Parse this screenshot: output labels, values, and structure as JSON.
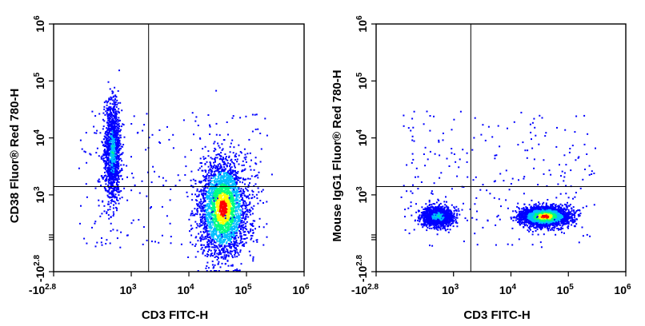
{
  "chart_data": [
    {
      "type": "scatter",
      "subtype": "flow-cytometry-density-dot-plot",
      "xlabel": "CD3 FITC-H",
      "ylabel": "CD38 Fluor® Red 780-H",
      "x_scale": "biexponential",
      "y_scale": "biexponential",
      "xlim": [
        -631,
        1000000
      ],
      "ylim": [
        -631,
        1000000
      ],
      "x_ticks": [
        {
          "base": "-10",
          "exp": "2.8"
        },
        {
          "base": "10",
          "exp": "3"
        },
        {
          "base": "10",
          "exp": "4"
        },
        {
          "base": "10",
          "exp": "5"
        },
        {
          "base": "10",
          "exp": "6"
        }
      ],
      "y_ticks": [
        {
          "base": "-10",
          "exp": "2.8"
        },
        {
          "base": "10",
          "exp": "3"
        },
        {
          "base": "10",
          "exp": "4"
        },
        {
          "base": "10",
          "exp": "5"
        },
        {
          "base": "10",
          "exp": "6"
        }
      ],
      "quadrant_gate": {
        "x": 2000,
        "y": 1400
      },
      "populations": [
        {
          "name_visible": false,
          "x_center": 400,
          "y_center": 6000,
          "x_spread": [
            200,
            700
          ],
          "y_spread": [
            300,
            25000
          ],
          "density": "medium"
        },
        {
          "name_visible": false,
          "x_center": 38000,
          "y_center": 600,
          "x_spread": [
            12000,
            90000
          ],
          "y_spread": [
            100,
            20000
          ],
          "density": "high"
        }
      ],
      "grid": false,
      "legend": "none"
    },
    {
      "type": "scatter",
      "subtype": "flow-cytometry-density-dot-plot",
      "xlabel": "CD3 FITC-H",
      "ylabel": "Mouse IgG1 Fluor® Red 780-H",
      "x_scale": "biexponential",
      "y_scale": "biexponential",
      "xlim": [
        -631,
        1000000
      ],
      "ylim": [
        -631,
        1000000
      ],
      "x_ticks": [
        {
          "base": "-10",
          "exp": "2.8"
        },
        {
          "base": "10",
          "exp": "3"
        },
        {
          "base": "10",
          "exp": "4"
        },
        {
          "base": "10",
          "exp": "5"
        },
        {
          "base": "10",
          "exp": "6"
        }
      ],
      "y_ticks": [
        {
          "base": "-10",
          "exp": "2.8"
        },
        {
          "base": "10",
          "exp": "3"
        },
        {
          "base": "10",
          "exp": "4"
        },
        {
          "base": "10",
          "exp": "5"
        },
        {
          "base": "10",
          "exp": "6"
        }
      ],
      "quadrant_gate": {
        "x": 2000,
        "y": 1400
      },
      "populations": [
        {
          "name_visible": false,
          "x_center": 500,
          "y_center": 350,
          "x_spread": [
            150,
            1200
          ],
          "y_spread": [
            80,
            700
          ],
          "density": "medium"
        },
        {
          "name_visible": false,
          "x_center": 38000,
          "y_center": 350,
          "x_spread": [
            12000,
            90000
          ],
          "y_spread": [
            80,
            700
          ],
          "density": "high"
        }
      ],
      "grid": false,
      "legend": "none"
    }
  ],
  "colors": {
    "density_low": "#0000ff",
    "density_midlow": "#00bfff",
    "density_mid": "#00ff80",
    "density_midhigh": "#ffff00",
    "density_high": "#ff0000",
    "axis": "#000000"
  }
}
